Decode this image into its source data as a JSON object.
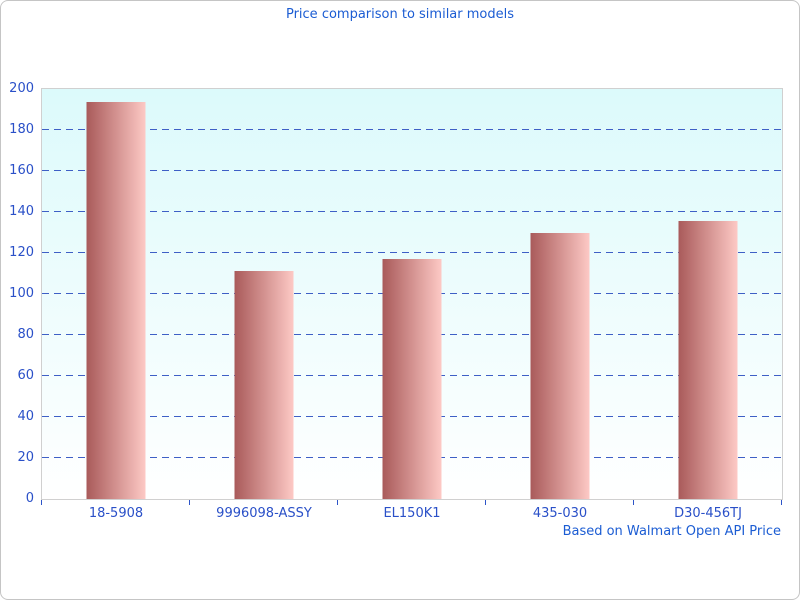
{
  "page": {
    "title": "Price comparison to similar models",
    "footnote": "Based on Walmart Open API Price"
  },
  "colors": {
    "title_color": "#1b5cd3",
    "axis_label_color": "#2a50c8",
    "gridline_color": "#3e5fc6",
    "tick_color": "#2d55c8",
    "plot_border": "#d0d0d0",
    "page_border": "#c5c5c5",
    "plot_bg_top": "#dcfafb",
    "plot_bg_bottom": "#ffffff",
    "bar_gradient_left": "#a95a5a",
    "bar_gradient_right": "#fdc9c5"
  },
  "chart_data": {
    "type": "bar",
    "title": "Price comparison to similar models",
    "categories": [
      "18-5908",
      "9996098-ASSY",
      "EL150K1",
      "435-030",
      "D30-456TJ"
    ],
    "values": [
      193.5,
      111,
      117,
      130,
      135.5
    ],
    "xlabel": "",
    "ylabel": "",
    "ylim": [
      0,
      200
    ],
    "ytick_step": 20,
    "grid": "horizontal-dashed",
    "legend_position": "none",
    "annotation": "Based on Walmart Open API Price",
    "bar_color_gradient": [
      "#a95a5a",
      "#fdc9c5"
    ]
  }
}
